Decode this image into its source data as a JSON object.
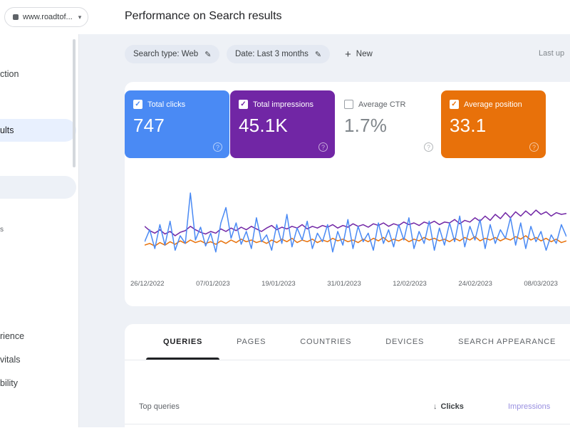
{
  "topbar": {
    "property_selector": {
      "label": "www.roadtof..."
    },
    "title": "Performance on Search results"
  },
  "icons": {
    "chevron_down": "▾",
    "pencil": "✎",
    "plus": "+",
    "check": "✓",
    "help": "?",
    "sort_down": "↓"
  },
  "sidebar": {
    "items": [
      {
        "label": "ction",
        "active": false
      },
      {
        "label": "ults",
        "active": true
      },
      {
        "label": "",
        "active": false
      },
      {
        "label": "s",
        "active": false
      },
      {
        "label": "rience",
        "active": false
      },
      {
        "label": "vitals",
        "active": false
      },
      {
        "label": "bility",
        "active": false
      }
    ]
  },
  "filters": {
    "chips": [
      {
        "label": "Search type: Web"
      },
      {
        "label": "Date: Last 3 months"
      }
    ],
    "new_button": "New",
    "last_updated": "Last up"
  },
  "metric_cards": {
    "items": [
      {
        "label": "Total clicks",
        "value": "747",
        "checked": true,
        "bg": "#4a8af4",
        "text": "#ffffff"
      },
      {
        "label": "Total impressions",
        "value": "45.1K",
        "checked": true,
        "bg": "#7126a5",
        "text": "#ffffff"
      },
      {
        "label": "Average CTR",
        "value": "1.7%",
        "checked": false,
        "bg": "#ffffff",
        "text": "#80868b"
      },
      {
        "label": "Average position",
        "value": "33.1",
        "checked": true,
        "bg": "#e8710a",
        "text": "#ffffff"
      }
    ]
  },
  "chart_data": {
    "type": "line",
    "title": "Performance on Search results",
    "x_tick_labels": [
      "26/12/2022",
      "07/01/2023",
      "19/01/2023",
      "31/01/2023",
      "12/02/2023",
      "24/02/2023",
      "08/03/2023"
    ],
    "ylim": [
      0,
      100
    ],
    "y_axis": "unlabeled (relative scale)",
    "grid": false,
    "legend": "none (metric cards act as legend)",
    "series": [
      {
        "name": "Clicks",
        "color": "#4a8af4",
        "values": [
          38,
          52,
          30,
          58,
          34,
          62,
          28,
          45,
          36,
          95,
          40,
          55,
          33,
          48,
          26,
          60,
          78,
          42,
          60,
          35,
          50,
          30,
          66,
          38,
          46,
          28,
          58,
          36,
          70,
          32,
          54,
          40,
          62,
          30,
          48,
          38,
          58,
          26,
          50,
          34,
          64,
          30,
          56,
          38,
          48,
          28,
          60,
          36,
          52,
          32,
          58,
          40,
          66,
          30,
          50,
          36,
          62,
          28,
          54,
          34,
          60,
          38,
          68,
          32,
          56,
          40,
          64,
          30,
          58,
          36,
          52,
          42,
          66,
          34,
          60,
          30,
          56,
          38,
          50,
          28,
          46,
          36,
          58,
          44
        ]
      },
      {
        "name": "Impressions",
        "color": "#7126a5",
        "values": [
          56,
          51,
          48,
          52,
          47,
          50,
          45,
          49,
          51,
          56,
          52,
          49,
          47,
          50,
          48,
          53,
          50,
          54,
          51,
          55,
          52,
          56,
          53,
          50,
          54,
          57,
          52,
          55,
          53,
          56,
          54,
          58,
          53,
          56,
          54,
          57,
          55,
          58,
          54,
          57,
          55,
          59,
          56,
          58,
          55,
          59,
          57,
          60,
          56,
          59,
          57,
          61,
          58,
          60,
          57,
          61,
          59,
          62,
          58,
          61,
          60,
          64,
          59,
          63,
          61,
          66,
          62,
          68,
          63,
          70,
          65,
          72,
          66,
          73,
          68,
          74,
          69,
          75,
          70,
          73,
          68,
          72,
          70,
          71
        ]
      },
      {
        "name": "Position",
        "color": "#e8710a",
        "values": [
          34,
          36,
          33,
          37,
          34,
          38,
          35,
          39,
          36,
          40,
          37,
          39,
          36,
          38,
          35,
          39,
          36,
          40,
          37,
          41,
          38,
          40,
          37,
          39,
          36,
          40,
          37,
          41,
          38,
          42,
          37,
          40,
          38,
          41,
          37,
          40,
          38,
          42,
          39,
          41,
          38,
          40,
          37,
          41,
          38,
          42,
          39,
          43,
          38,
          41,
          39,
          42,
          38,
          41,
          39,
          43,
          40,
          42,
          39,
          41,
          38,
          42,
          39,
          43,
          40,
          44,
          39,
          42,
          40,
          43,
          39,
          42,
          40,
          44,
          41,
          45,
          40,
          43,
          39,
          42,
          38,
          41,
          37,
          39
        ]
      }
    ]
  },
  "tabs": {
    "items": [
      {
        "label": "QUERIES",
        "active": true
      },
      {
        "label": "PAGES",
        "active": false
      },
      {
        "label": "COUNTRIES",
        "active": false
      },
      {
        "label": "DEVICES",
        "active": false
      },
      {
        "label": "SEARCH APPEARANCE",
        "active": false
      }
    ]
  },
  "table": {
    "first_col": "Top queries",
    "sort_col": "Clicks",
    "col2": "Impressions"
  }
}
